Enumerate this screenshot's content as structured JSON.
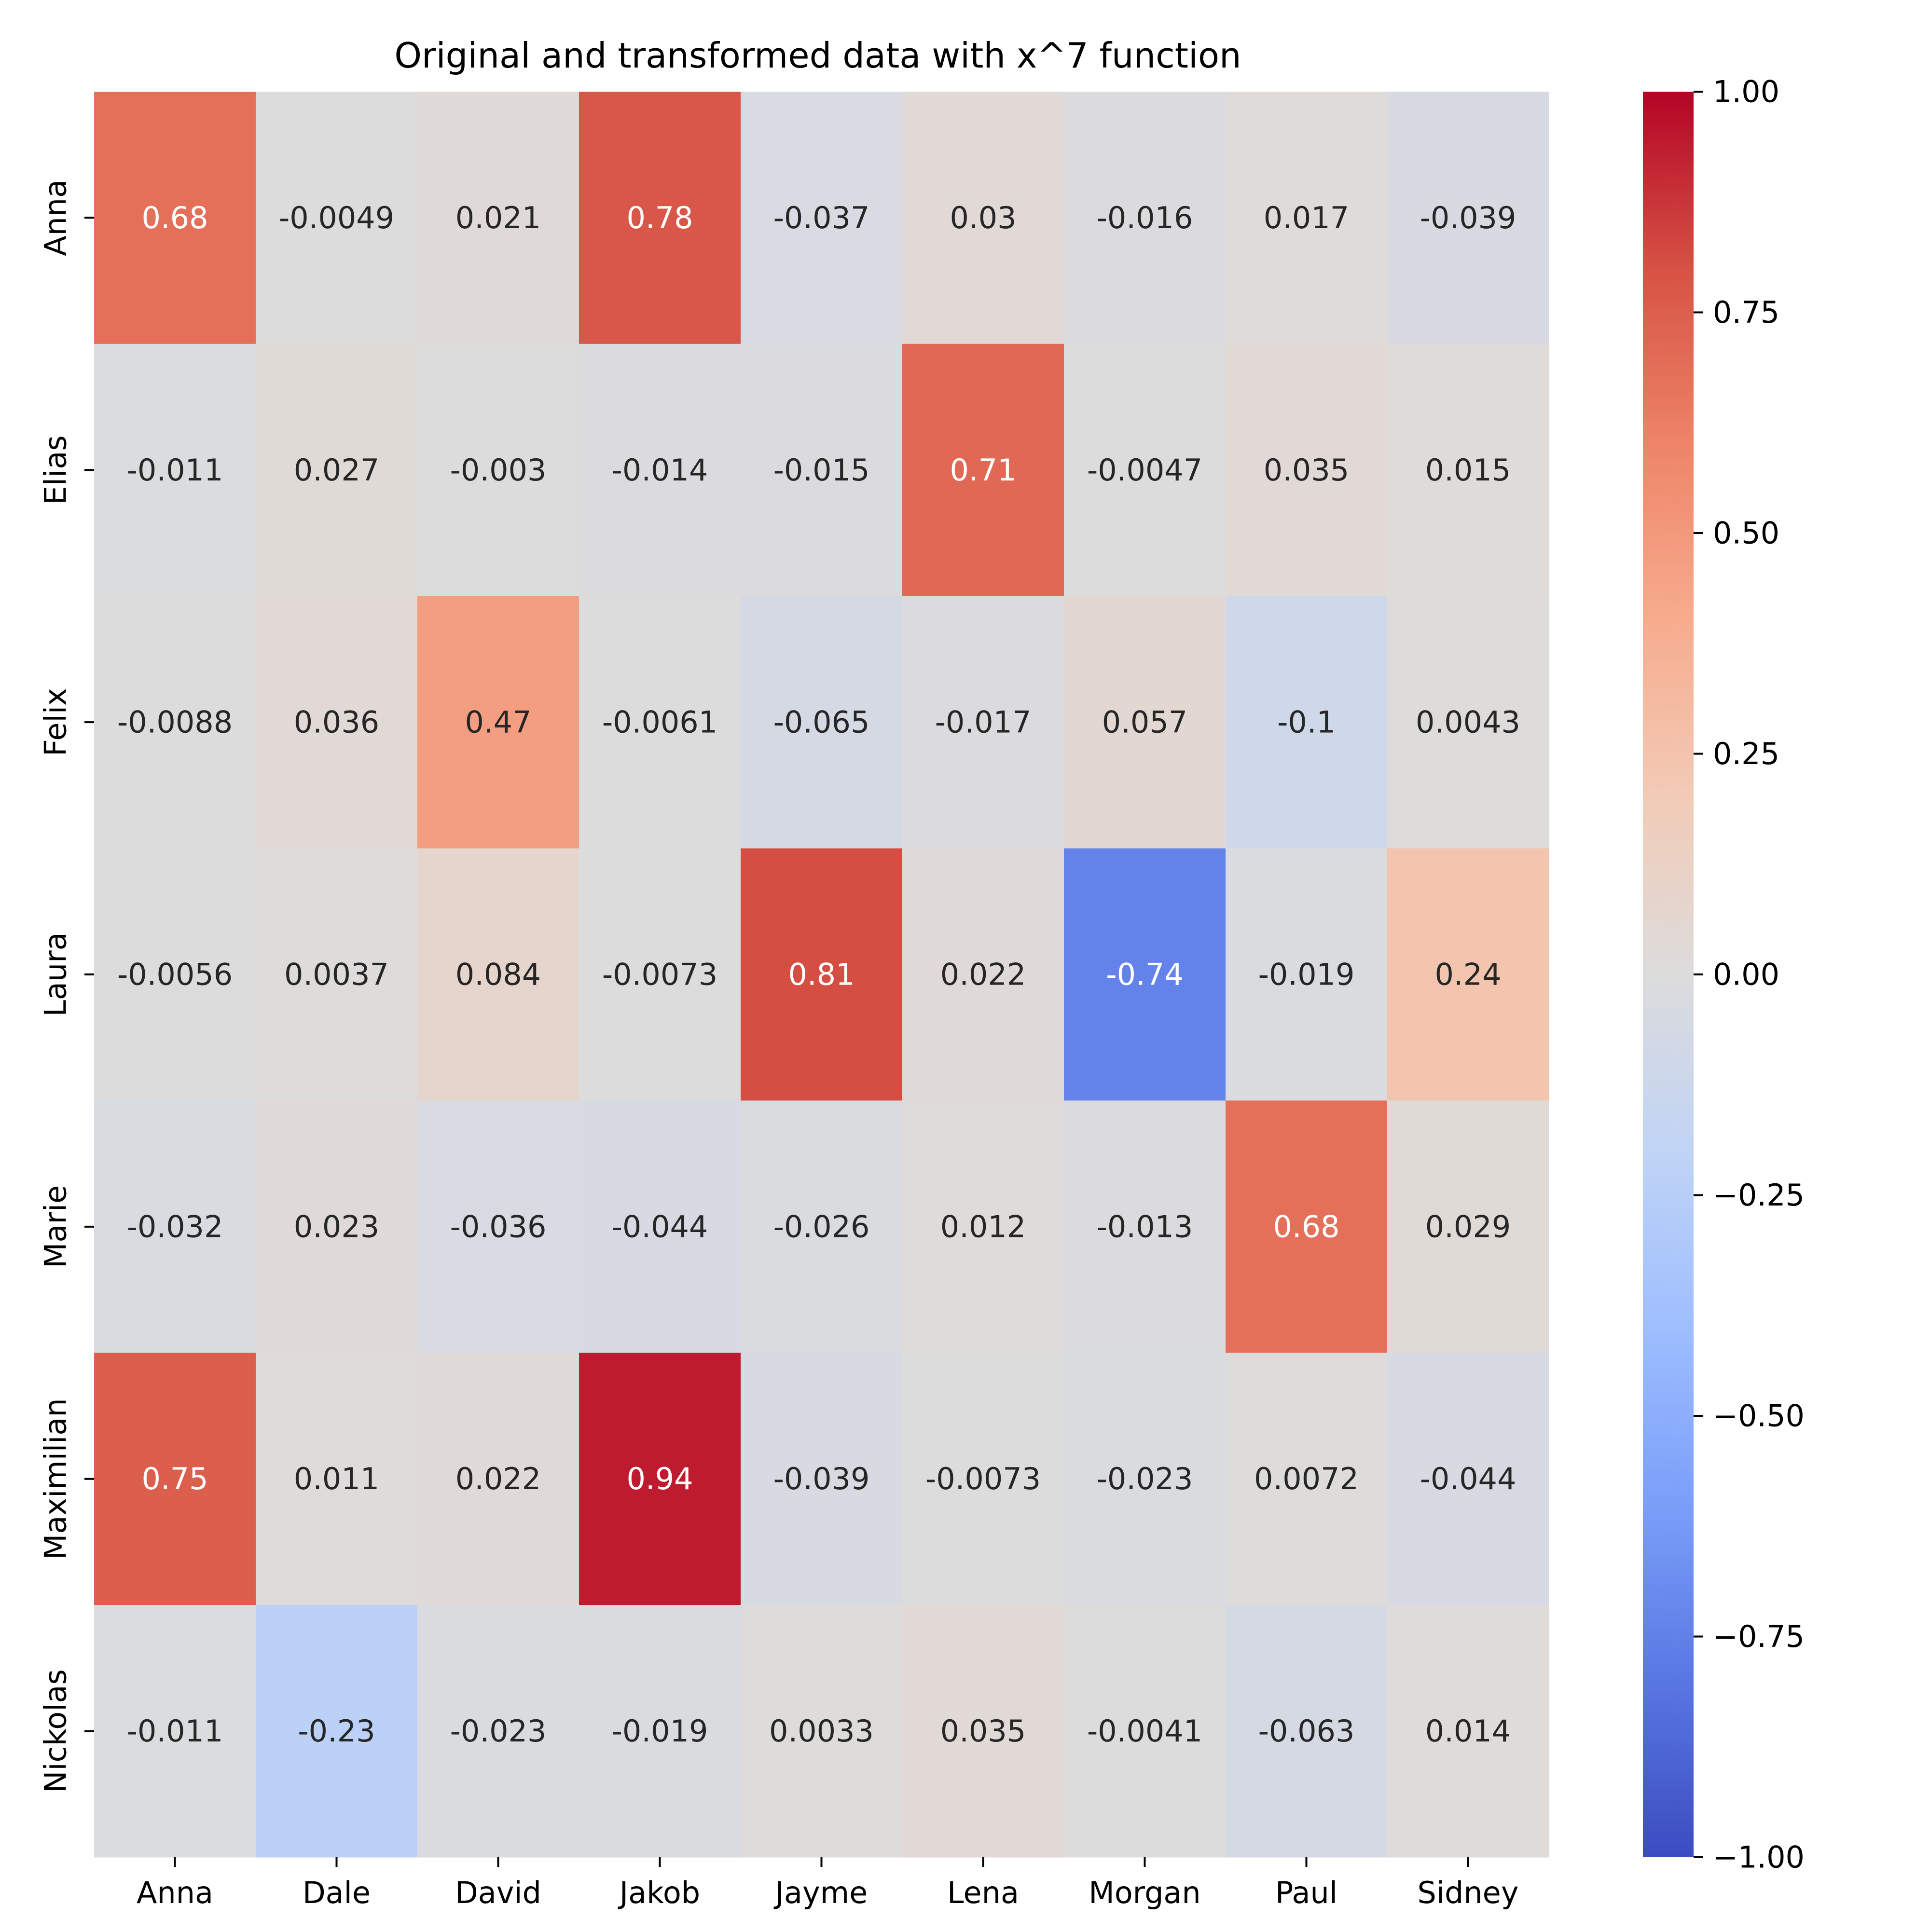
{
  "chart_data": {
    "type": "heatmap",
    "title": "Original and transformed data with x^7 function",
    "row_labels": [
      "Anna",
      "Elias",
      "Felix",
      "Laura",
      "Marie",
      "Maximilian",
      "Nickolas"
    ],
    "col_labels": [
      "Anna",
      "Dale",
      "David",
      "Jakob",
      "Jayme",
      "Lena",
      "Morgan",
      "Paul",
      "Sidney"
    ],
    "values": [
      [
        0.68,
        -0.0049,
        0.021,
        0.78,
        -0.037,
        0.03,
        -0.016,
        0.017,
        -0.039
      ],
      [
        -0.011,
        0.027,
        -0.003,
        -0.014,
        -0.015,
        0.71,
        -0.0047,
        0.035,
        0.015
      ],
      [
        -0.0088,
        0.036,
        0.47,
        -0.0061,
        -0.065,
        -0.017,
        0.057,
        -0.1,
        0.0043
      ],
      [
        -0.0056,
        0.0037,
        0.084,
        -0.0073,
        0.81,
        0.022,
        -0.74,
        -0.019,
        0.24
      ],
      [
        -0.032,
        0.023,
        -0.036,
        -0.044,
        -0.026,
        0.012,
        -0.013,
        0.68,
        0.029
      ],
      [
        0.75,
        0.011,
        0.022,
        0.94,
        -0.039,
        -0.0073,
        -0.023,
        0.0072,
        -0.044
      ],
      [
        -0.011,
        -0.23,
        -0.023,
        -0.019,
        0.0033,
        0.035,
        -0.0041,
        -0.063,
        0.014
      ]
    ],
    "value_labels": [
      [
        "0.68",
        "-0.0049",
        "0.021",
        "0.78",
        "-0.037",
        "0.03",
        "-0.016",
        "0.017",
        "-0.039"
      ],
      [
        "-0.011",
        "0.027",
        "-0.003",
        "-0.014",
        "-0.015",
        "0.71",
        "-0.0047",
        "0.035",
        "0.015"
      ],
      [
        "-0.0088",
        "0.036",
        "0.47",
        "-0.0061",
        "-0.065",
        "-0.017",
        "0.057",
        "-0.1",
        "0.0043"
      ],
      [
        "-0.0056",
        "0.0037",
        "0.084",
        "-0.0073",
        "0.81",
        "0.022",
        "-0.74",
        "-0.019",
        "0.24"
      ],
      [
        "-0.032",
        "0.023",
        "-0.036",
        "-0.044",
        "-0.026",
        "0.012",
        "-0.013",
        "0.68",
        "0.029"
      ],
      [
        "0.75",
        "0.011",
        "0.022",
        "0.94",
        "-0.039",
        "-0.0073",
        "-0.023",
        "0.0072",
        "-0.044"
      ],
      [
        "-0.011",
        "-0.23",
        "-0.023",
        "-0.019",
        "0.0033",
        "0.035",
        "-0.0041",
        "-0.063",
        "0.014"
      ]
    ],
    "colormap": "coolwarm",
    "colormap_stops": [
      "#3b4cc0",
      "#5977e3",
      "#7b9ff9",
      "#9ebeff",
      "#c0d4f5",
      "#dddcdc",
      "#f2cbb7",
      "#f7ac8e",
      "#ee8468",
      "#d65244",
      "#b40426"
    ],
    "vmin": -1.0,
    "vmax": 1.0,
    "colorbar_ticks": [
      "1.00",
      "0.75",
      "0.50",
      "0.25",
      "0.00",
      "−0.25",
      "−0.50",
      "−0.75",
      "−1.00"
    ],
    "colorbar_tick_values": [
      1.0,
      0.75,
      0.5,
      0.25,
      0.0,
      -0.25,
      -0.5,
      -0.75,
      -1.0
    ],
    "grid": false,
    "legend": "colorbar-right"
  }
}
